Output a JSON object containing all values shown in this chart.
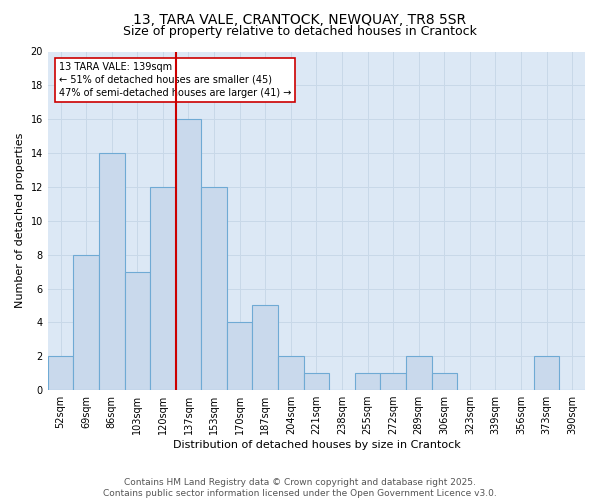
{
  "title_line1": "13, TARA VALE, CRANTOCK, NEWQUAY, TR8 5SR",
  "title_line2": "Size of property relative to detached houses in Crantock",
  "xlabel": "Distribution of detached houses by size in Crantock",
  "ylabel": "Number of detached properties",
  "bar_labels": [
    "52sqm",
    "69sqm",
    "86sqm",
    "103sqm",
    "120sqm",
    "137sqm",
    "153sqm",
    "170sqm",
    "187sqm",
    "204sqm",
    "221sqm",
    "238sqm",
    "255sqm",
    "272sqm",
    "289sqm",
    "306sqm",
    "323sqm",
    "339sqm",
    "356sqm",
    "373sqm",
    "390sqm"
  ],
  "bar_heights": [
    2,
    8,
    14,
    7,
    12,
    16,
    12,
    4,
    5,
    2,
    1,
    0,
    1,
    1,
    2,
    1,
    0,
    0,
    0,
    2,
    0
  ],
  "bar_color": "#c9d9ec",
  "bar_edge_color": "#6faad4",
  "vline_color": "#cc0000",
  "vline_x_index": 5,
  "annotation_text": "13 TARA VALE: 139sqm\n← 51% of detached houses are smaller (45)\n47% of semi-detached houses are larger (41) →",
  "annotation_box_edge": "#cc0000",
  "ylim": [
    0,
    20
  ],
  "yticks": [
    0,
    2,
    4,
    6,
    8,
    10,
    12,
    14,
    16,
    18,
    20
  ],
  "grid_color": "#c8d8e8",
  "background_color": "#dce8f5",
  "footer_text": "Contains HM Land Registry data © Crown copyright and database right 2025.\nContains public sector information licensed under the Open Government Licence v3.0.",
  "title_fontsize": 10,
  "subtitle_fontsize": 9,
  "axis_label_fontsize": 8,
  "tick_fontsize": 7,
  "annotation_fontsize": 7,
  "footer_fontsize": 6.5
}
